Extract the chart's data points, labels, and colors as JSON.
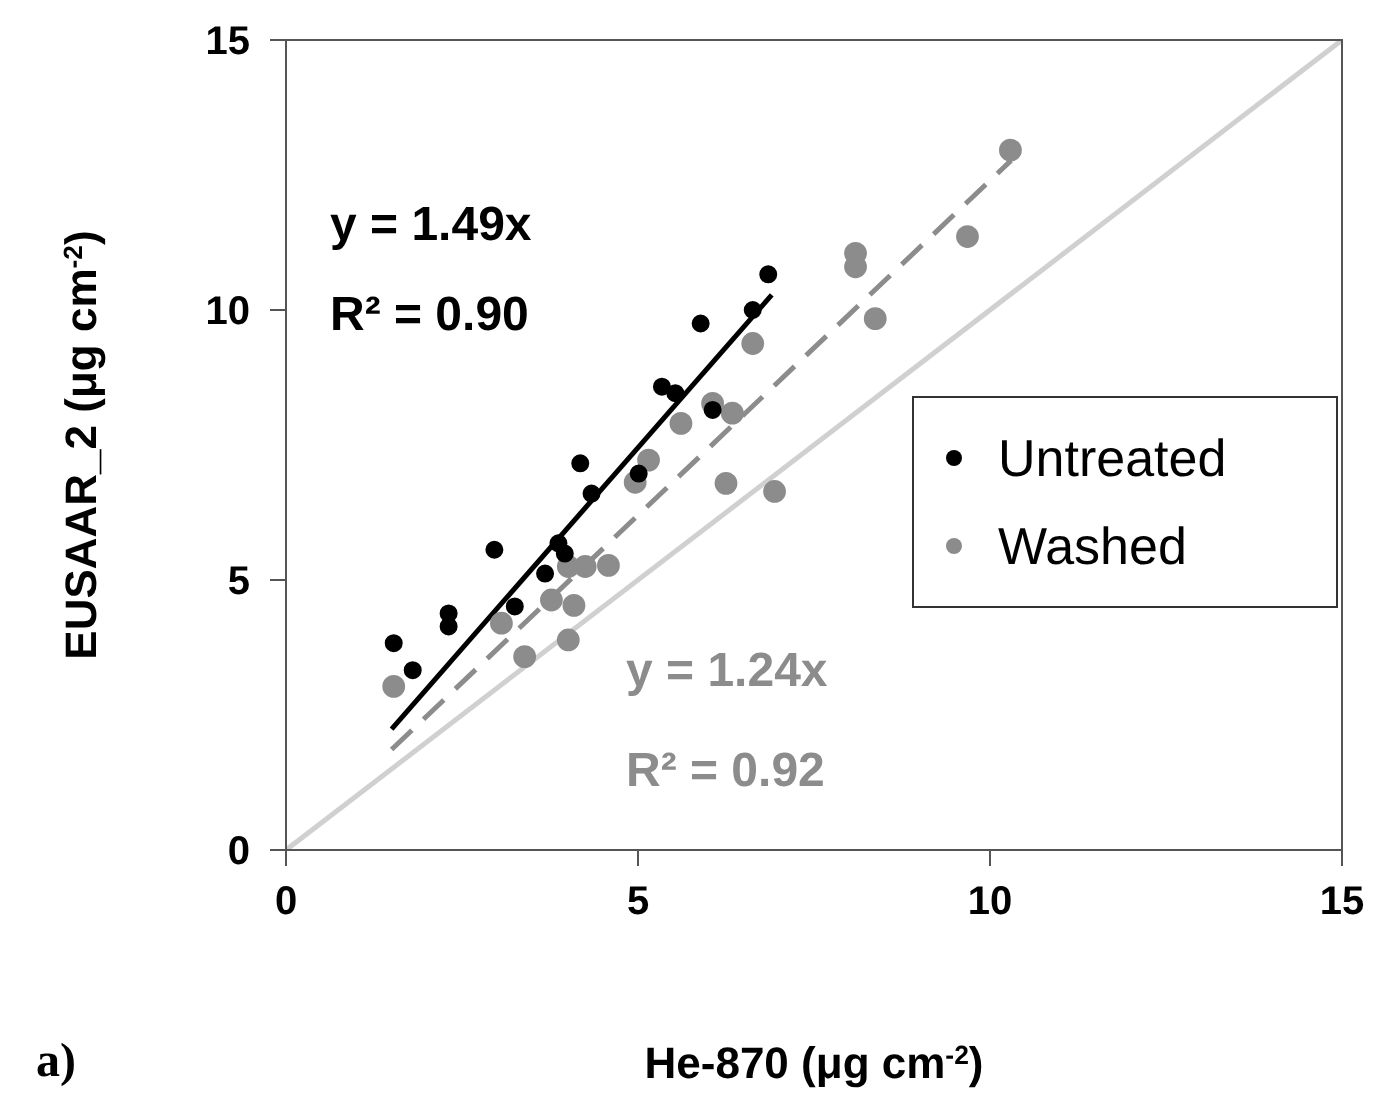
{
  "chart_data": {
    "type": "scatter",
    "xlabel": "He-870 (μg cm$^{-2}$)",
    "ylabel": "EUSAAR_2 (μg cm$^{-2}$)",
    "xlim": [
      0,
      15
    ],
    "ylim": [
      0,
      15
    ],
    "xticks": [
      0,
      5,
      10,
      15
    ],
    "yticks": [
      0,
      5,
      10,
      15
    ],
    "legend": "right",
    "marker": "circle",
    "annotations": [
      "y = 1.49x",
      "R² = 0.90",
      "y = 1.24x",
      "R² = 0.92",
      "a)"
    ],
    "series": [
      {
        "name": "Untreated",
        "color": "#000000",
        "x": [
          1.53,
          1.8,
          2.31,
          2.31,
          2.96,
          3.25,
          3.68,
          3.87,
          3.96,
          4.18,
          4.34,
          5.01,
          5.34,
          5.53,
          5.89,
          6.06,
          6.63,
          6.85
        ],
        "values": [
          3.83,
          3.33,
          4.38,
          4.14,
          5.56,
          4.51,
          5.12,
          5.68,
          5.49,
          7.16,
          6.6,
          6.97,
          8.58,
          8.46,
          9.75,
          8.15,
          10.0,
          10.66
        ]
      },
      {
        "name": "Washed",
        "color": "#8c8c8c",
        "x": [
          1.53,
          3.06,
          3.39,
          3.77,
          4.01,
          4.09,
          4.01,
          4.25,
          4.58,
          4.96,
          5.15,
          5.61,
          6.06,
          6.34,
          6.25,
          6.63,
          6.94,
          8.09,
          8.09,
          8.37,
          9.68,
          10.29
        ],
        "values": [
          3.03,
          4.2,
          3.58,
          4.63,
          3.89,
          4.53,
          5.25,
          5.25,
          5.27,
          6.81,
          7.22,
          7.9,
          8.27,
          8.09,
          6.79,
          9.38,
          6.64,
          11.05,
          10.8,
          9.84,
          11.36,
          12.96
        ]
      },
      {
        "type": "line",
        "color": "#000000",
        "line_style": "solid",
        "marker": "none",
        "x": [
          1.5,
          6.9
        ],
        "values": [
          2.24,
          10.28
        ]
      },
      {
        "type": "line",
        "color": "#8c8c8c",
        "line_style": "dashed",
        "marker": "none",
        "x": [
          1.5,
          10.3
        ],
        "values": [
          1.86,
          12.77
        ]
      },
      {
        "type": "line",
        "color": "#d0d0d0",
        "line_style": "solid",
        "marker": "none",
        "x": [
          0,
          15
        ],
        "values": [
          0,
          15
        ]
      }
    ]
  }
}
